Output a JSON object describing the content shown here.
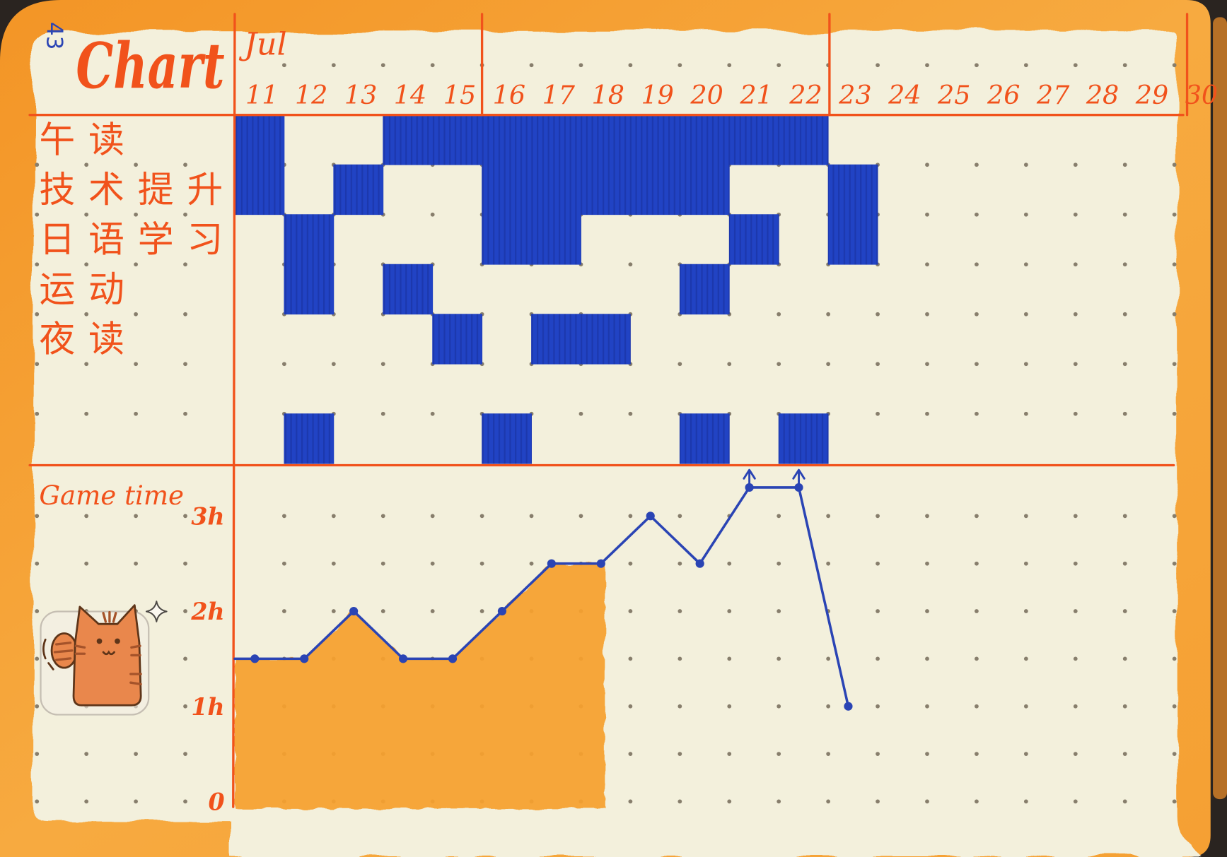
{
  "page_number": "43",
  "title": "Chart",
  "colors": {
    "background": "#2a2420",
    "paper": "#f3f0dc",
    "border_orange": "#f6a233",
    "ink_orange": "#f1521b",
    "ink_blue": "#2143c4",
    "line_blue": "#2a44b4",
    "fill_orange": "#f7a12e",
    "dot": "#877e6c"
  },
  "sticker": {
    "icon": "cat-icon",
    "accent_icon": "sparkle-icon",
    "colors": {
      "fur": "#e9874c",
      "stripe": "#a5532a",
      "outline": "#5e3519"
    }
  },
  "chart_data": [
    {
      "type": "heatmap",
      "month_label": "Jul",
      "x": [
        "11",
        "12",
        "13",
        "14",
        "15",
        "16",
        "17",
        "18",
        "19",
        "20",
        "21",
        "22",
        "23",
        "24",
        "25",
        "26",
        "27",
        "28",
        "29",
        "30"
      ],
      "y": [
        "午读",
        "技术提升",
        "日语学习",
        "运动",
        "夜读",
        "",
        ""
      ],
      "values": [
        [
          1,
          0,
          0,
          1,
          1,
          1,
          1,
          1,
          1,
          1,
          1,
          1,
          0,
          0,
          0,
          0,
          0,
          0,
          0,
          0
        ],
        [
          1,
          0,
          1,
          0,
          0,
          1,
          1,
          1,
          1,
          1,
          0,
          0,
          1,
          0,
          0,
          0,
          0,
          0,
          0,
          0
        ],
        [
          0,
          1,
          0,
          0,
          0,
          1,
          1,
          0,
          0,
          0,
          1,
          0,
          1,
          0,
          0,
          0,
          0,
          0,
          0,
          0
        ],
        [
          0,
          1,
          0,
          1,
          0,
          0,
          0,
          0,
          0,
          1,
          0,
          0,
          0,
          0,
          0,
          0,
          0,
          0,
          0,
          0
        ],
        [
          0,
          0,
          0,
          0,
          1,
          0,
          1,
          1,
          0,
          0,
          0,
          0,
          0,
          0,
          0,
          0,
          0,
          0,
          0,
          0
        ],
        [
          0,
          0,
          0,
          0,
          0,
          0,
          0,
          0,
          0,
          0,
          0,
          0,
          0,
          0,
          0,
          0,
          0,
          0,
          0,
          0
        ],
        [
          0,
          1,
          0,
          0,
          0,
          1,
          0,
          0,
          0,
          1,
          0,
          1,
          0,
          0,
          0,
          0,
          0,
          0,
          0,
          0
        ]
      ]
    },
    {
      "type": "line",
      "title": "Game time",
      "x": [
        11,
        12,
        13,
        14,
        15,
        16,
        17,
        18,
        19,
        20,
        21,
        22,
        23
      ],
      "y": [
        1.5,
        1.5,
        2,
        1.5,
        1.5,
        2,
        2.5,
        2.5,
        3,
        2.5,
        3.3,
        3.3,
        1
      ],
      "yticks": [
        {
          "value": 0,
          "label": "0"
        },
        {
          "value": 1,
          "label": "1h"
        },
        {
          "value": 2,
          "label": "2h"
        },
        {
          "value": 3,
          "label": "3h"
        }
      ],
      "ylim": [
        0,
        3.5
      ],
      "arrow_up_days": [
        21,
        22
      ],
      "area_fill": {
        "x_from": 11,
        "x_to": 18
      }
    }
  ]
}
